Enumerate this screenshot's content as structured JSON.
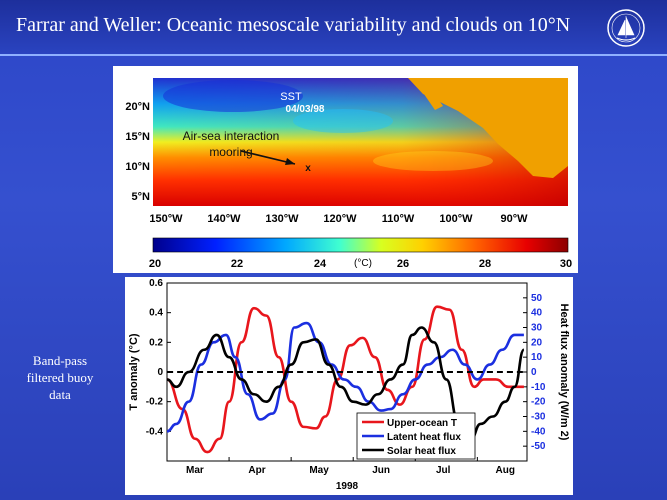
{
  "header": {
    "title": "Farrar and Weller: Oceanic mesoscale variability and clouds on 10°N",
    "logo_icon": "institution-seal-icon"
  },
  "caption": {
    "line1": "Band-pass",
    "line2": "filtered buoy",
    "line3": "data"
  },
  "sst_map": {
    "title": "SST",
    "date": "04/03/98",
    "annotation_line1": "Air-sea interaction",
    "annotation_line2": "mooring",
    "marker": "x",
    "lat_labels": [
      "20°N",
      "15°N",
      "10°N",
      "5°N"
    ],
    "lon_labels": [
      "150°W",
      "140°W",
      "130°W",
      "120°W",
      "110°W",
      "100°W",
      "90°W"
    ],
    "colorbar": {
      "ticks": [
        "20",
        "22",
        "24",
        "26",
        "28",
        "30"
      ],
      "unit": "(°C)",
      "min": 20,
      "max": 30
    }
  },
  "chart_data": {
    "type": "line",
    "title": "",
    "xlabel": "1998",
    "x_ticks": [
      "Mar",
      "Apr",
      "May",
      "Jun",
      "Jul",
      "Aug"
    ],
    "ylabel_left": "T anomaly (°C)",
    "ylim_left": [
      -0.6,
      0.6
    ],
    "yticks_left": [
      "0.6",
      "0.4",
      "0.2",
      "0",
      "-0.2",
      "-0.4"
    ],
    "ylabel_right": "Heat flux anomaly (W/m 2)",
    "ylim_right": [
      -60,
      60
    ],
    "yticks_right": [
      "50",
      "40",
      "30",
      "20",
      "10",
      "0",
      "-10",
      "-20",
      "-30",
      "-40",
      "-50"
    ],
    "x_range": [
      0,
      5.8
    ],
    "legend_position": "bottom-right",
    "series": [
      {
        "name": "Upper-ocean T",
        "color": "#e8161c",
        "axis": "left",
        "x": [
          0,
          0.25,
          0.45,
          0.65,
          0.85,
          1.0,
          1.2,
          1.4,
          1.6,
          1.8,
          2.0,
          2.2,
          2.4,
          2.55,
          2.75,
          2.95,
          3.15,
          3.35,
          3.55,
          3.75,
          3.95,
          4.15,
          4.35,
          4.55,
          4.75,
          4.95,
          5.1,
          5.3,
          5.5,
          5.75
        ],
        "y": [
          -0.05,
          -0.25,
          -0.45,
          -0.54,
          -0.45,
          -0.2,
          0.2,
          0.43,
          0.38,
          0.1,
          -0.2,
          -0.37,
          -0.38,
          -0.3,
          -0.05,
          0.18,
          0.23,
          0.1,
          -0.12,
          -0.22,
          -0.1,
          0.22,
          0.44,
          0.42,
          0.15,
          -0.1,
          -0.05,
          -0.05,
          -0.1,
          -0.1
        ]
      },
      {
        "name": "Latent heat flux",
        "color": "#1b2fe0",
        "axis": "right",
        "x": [
          0,
          0.15,
          0.35,
          0.55,
          0.75,
          0.95,
          1.1,
          1.3,
          1.5,
          1.7,
          1.9,
          2.05,
          2.25,
          2.45,
          2.65,
          2.85,
          3.05,
          3.25,
          3.45,
          3.6,
          3.8,
          4.0,
          4.2,
          4.4,
          4.6,
          4.8,
          5.0,
          5.2,
          5.4,
          5.6,
          5.75
        ],
        "y": [
          -40,
          -35,
          -20,
          5,
          20,
          25,
          10,
          -15,
          -32,
          -28,
          -5,
          30,
          33,
          20,
          5,
          -5,
          -10,
          -20,
          -26,
          -25,
          -15,
          -5,
          5,
          10,
          15,
          5,
          -5,
          5,
          15,
          25,
          25
        ]
      },
      {
        "name": "Solar heat flux",
        "color": "#000000",
        "axis": "right",
        "x": [
          0,
          0.15,
          0.35,
          0.6,
          0.8,
          1.0,
          1.2,
          1.4,
          1.6,
          1.8,
          2.0,
          2.2,
          2.4,
          2.6,
          2.8,
          3.0,
          3.2,
          3.4,
          3.6,
          3.8,
          3.95,
          4.1,
          4.3,
          4.5,
          4.7,
          4.9,
          5.05,
          5.25,
          5.45,
          5.6,
          5.75
        ],
        "y": [
          -5,
          -10,
          0,
          15,
          25,
          10,
          -5,
          -15,
          -20,
          -10,
          5,
          20,
          22,
          5,
          -10,
          -20,
          -22,
          -15,
          -5,
          5,
          25,
          30,
          20,
          -5,
          -35,
          -45,
          -35,
          -30,
          -20,
          -10,
          15
        ]
      },
      {
        "name": "",
        "color": "#000000",
        "axis": "left",
        "dash": true,
        "x": [
          0,
          5.8
        ],
        "y": [
          0,
          0
        ]
      }
    ]
  }
}
